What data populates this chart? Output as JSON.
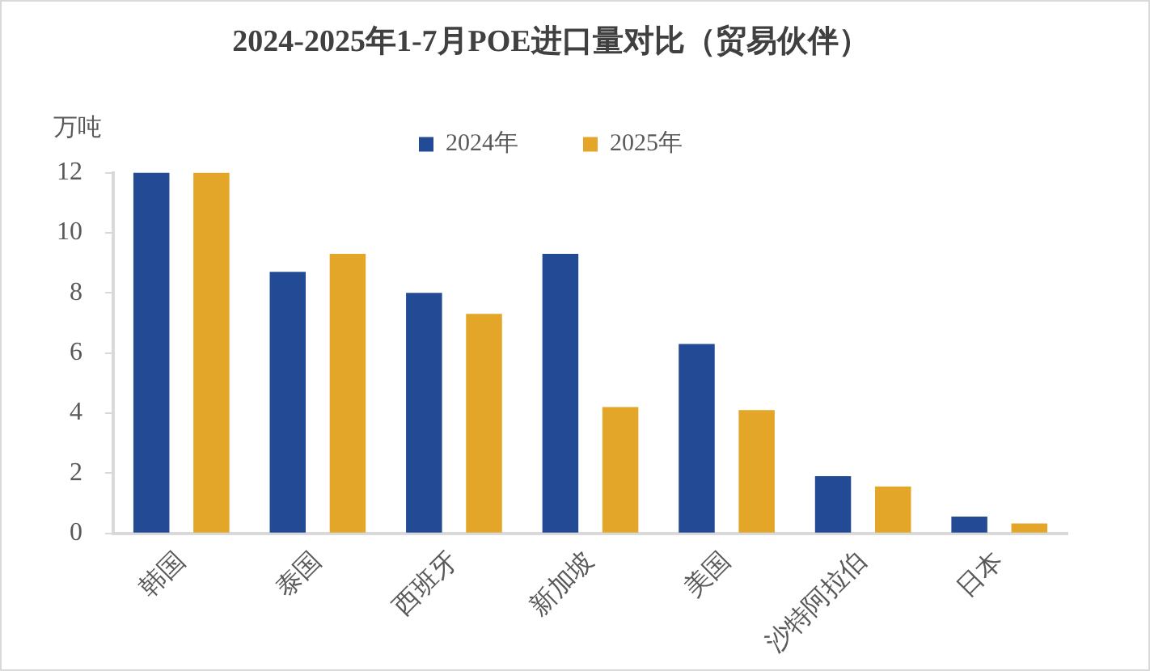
{
  "chart_data": {
    "type": "bar",
    "title": "2024-2025年1-7月POE进口量对比（贸易伙伴）",
    "ylabel": "万吨",
    "categories": [
      "韩国",
      "泰国",
      "西班牙",
      "新加坡",
      "美国",
      "沙特阿拉伯",
      "日本"
    ],
    "series": [
      {
        "name": "2024年",
        "color": "#234a94",
        "values": [
          12,
          8.7,
          8.0,
          9.3,
          6.3,
          1.9,
          0.56
        ]
      },
      {
        "name": "2025年",
        "color": "#e3a628",
        "values": [
          12,
          9.3,
          7.3,
          4.2,
          4.1,
          1.56,
          0.33
        ]
      }
    ],
    "ylim": [
      0,
      12
    ],
    "yticks": [
      0,
      2,
      4,
      6,
      8,
      10,
      12
    ],
    "grid": false,
    "legend": "top"
  }
}
